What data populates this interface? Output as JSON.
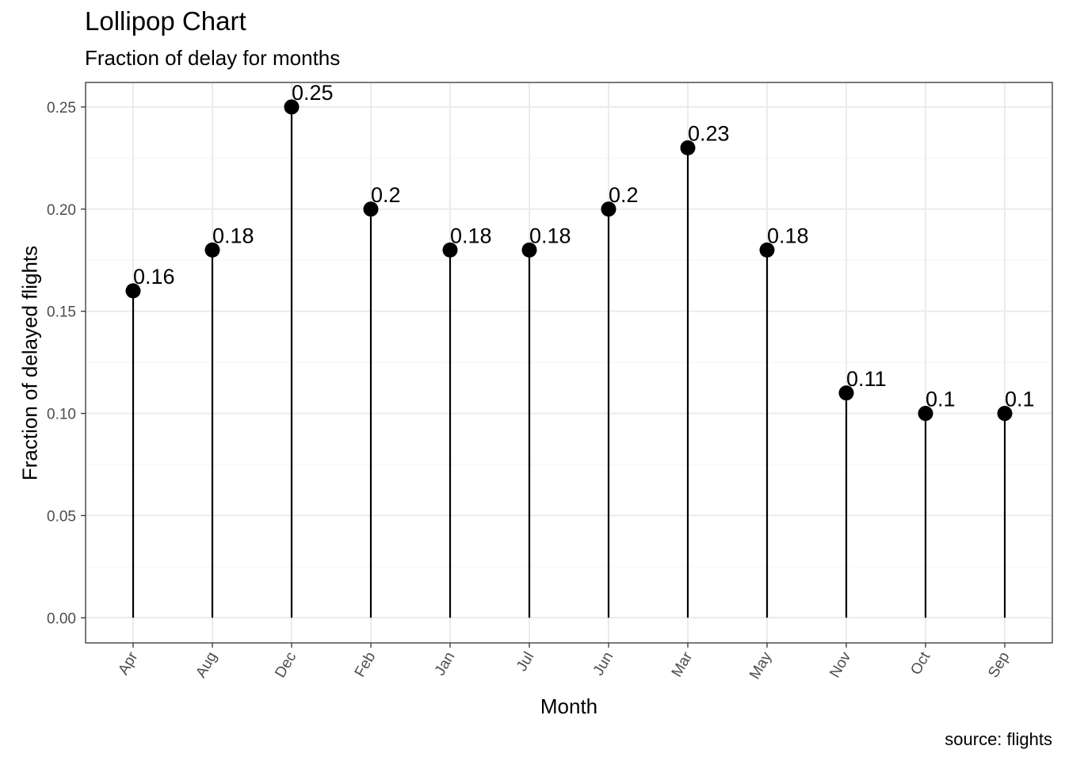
{
  "title": "Lollipop Chart",
  "subtitle": "Fraction of delay for months",
  "caption": "source: flights",
  "chart_data": {
    "type": "lollipop",
    "title": "Lollipop Chart",
    "subtitle": "Fraction of delay for months",
    "xlabel": "Month",
    "ylabel": "Fraction of delayed flights",
    "categories": [
      "Apr",
      "Aug",
      "Dec",
      "Feb",
      "Jan",
      "Jul",
      "Jun",
      "Mar",
      "May",
      "Nov",
      "Oct",
      "Sep"
    ],
    "values": [
      0.16,
      0.18,
      0.25,
      0.2,
      0.18,
      0.18,
      0.2,
      0.23,
      0.18,
      0.11,
      0.1,
      0.1
    ],
    "data_labels": [
      "0.16",
      "0.18",
      "0.25",
      "0.2",
      "0.18",
      "0.18",
      "0.2",
      "0.23",
      "0.18",
      "0.11",
      "0.1",
      "0.1"
    ],
    "y_ticks": [
      0,
      0.05,
      0.1,
      0.15,
      0.2,
      0.25
    ],
    "y_tick_labels": [
      "0.00",
      "0.05",
      "0.10",
      "0.15",
      "0.20",
      "0.25"
    ],
    "ylim": [
      -0.0123,
      0.262
    ],
    "grid": true,
    "x_tick_label_rotation": "-60deg",
    "colors": {
      "mark": "#000000",
      "grid_major": "#ebebeb",
      "grid_minor": "#f4f4f4",
      "panel_border": "#333333",
      "tick_text": "#4d4d4d"
    }
  }
}
